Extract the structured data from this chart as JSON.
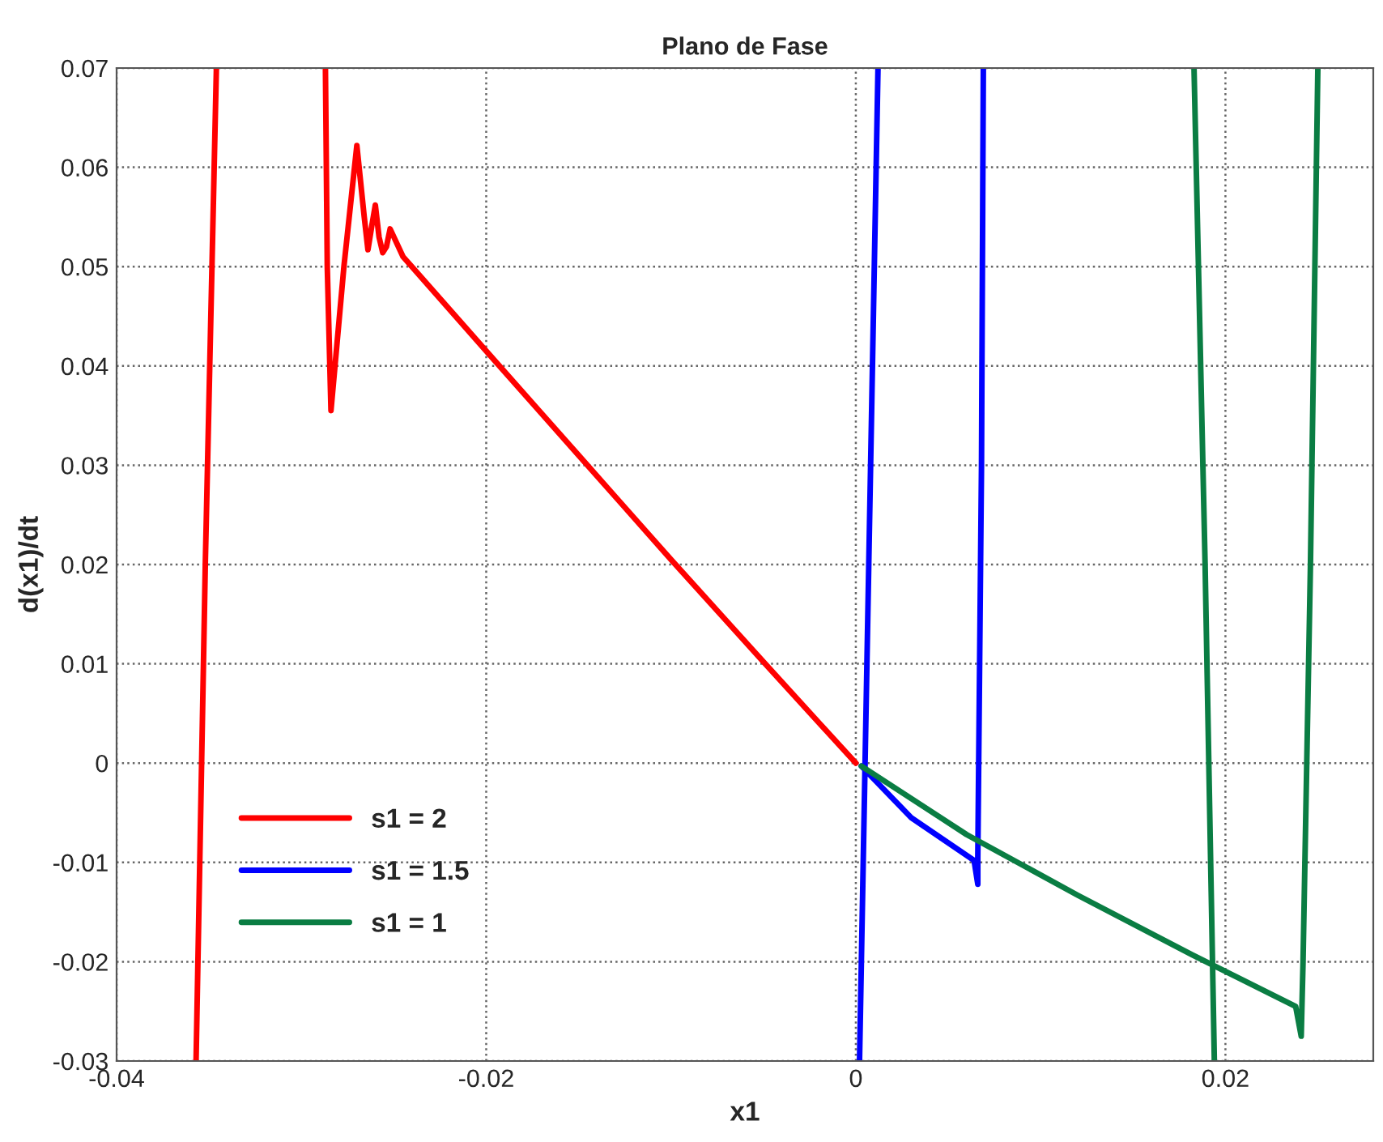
{
  "chart_data": {
    "type": "line",
    "title": "Plano de Fase",
    "xlabel": "x1",
    "ylabel": "d(x1)/dt",
    "xlim": [
      -0.04,
      0.028
    ],
    "ylim": [
      -0.03,
      0.07
    ],
    "xticks": [
      -0.04,
      -0.02,
      0,
      0.02
    ],
    "yticks": [
      -0.03,
      -0.02,
      -0.01,
      0,
      0.01,
      0.02,
      0.03,
      0.04,
      0.05,
      0.06,
      0.07
    ],
    "grid": true,
    "legend": "bottom left",
    "line_style": "solid",
    "marker": "none",
    "series": [
      {
        "name": "s1 = 2",
        "color": "#ff0000",
        "x": [
          -0.0357,
          -0.0352,
          -0.0346,
          null,
          -0.0287,
          -0.0286,
          -0.0284,
          -0.0277,
          -0.027,
          -0.0266,
          -0.0264,
          -0.0262,
          -0.026,
          -0.0258,
          -0.0256,
          -0.0254,
          -0.0252,
          -0.0245,
          -0.02,
          -0.015,
          -0.01,
          -0.005,
          0
        ],
        "values": [
          -0.03,
          0.02,
          0.07,
          null,
          0.07,
          0.05,
          0.0355,
          0.05,
          0.0622,
          0.055,
          0.0517,
          0.054,
          0.0562,
          0.053,
          0.0514,
          0.052,
          0.0538,
          0.051,
          0.0415,
          0.031,
          0.0205,
          0.0102,
          0
        ]
      },
      {
        "name": "s1 = 1.5",
        "color": "#0000ff",
        "x": [
          0.0002,
          0.0007,
          0.0012,
          null,
          0.0069,
          0.0068,
          0.0066,
          0.0066,
          0.0064,
          0.003,
          0.0003
        ],
        "values": [
          -0.03,
          0.02,
          0.07,
          null,
          0.07,
          0.03,
          -0.0095,
          -0.0122,
          -0.0098,
          -0.0055,
          -0.0003
        ]
      },
      {
        "name": "s1 = 1",
        "color": "#0a7d43",
        "x": [
          0.0183,
          0.0189,
          0.0194,
          null,
          0.025,
          0.0246,
          0.0242,
          0.0241,
          0.0238,
          0.0182,
          0.012,
          0.006,
          0.0003
        ],
        "values": [
          0.07,
          0.02,
          -0.03,
          null,
          0.07,
          0.02,
          -0.02,
          -0.0275,
          -0.0245,
          -0.0193,
          -0.0133,
          -0.0072,
          -0.0003
        ]
      }
    ]
  }
}
